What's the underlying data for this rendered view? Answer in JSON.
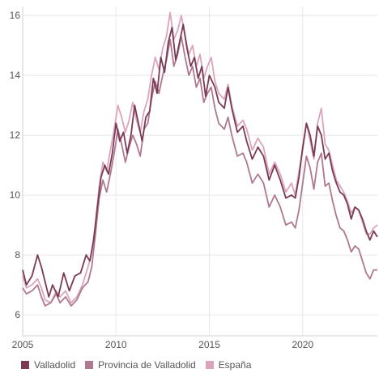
{
  "chart_data": {
    "type": "line",
    "title": "",
    "xlabel": "",
    "ylabel": "",
    "xlim": [
      2005,
      2024.0
    ],
    "ylim": [
      5.3,
      16.3
    ],
    "x_ticks": [
      2005,
      2010,
      2015,
      2020
    ],
    "y_ticks": [
      6,
      8,
      10,
      12,
      14,
      16
    ],
    "grid": true,
    "legend_position": "bottom-left",
    "series": [
      {
        "name": "Valladolid",
        "color": "#7a3a55",
        "points": [
          [
            2005.0,
            7.5
          ],
          [
            2005.2,
            7.0
          ],
          [
            2005.5,
            7.3
          ],
          [
            2005.8,
            8.0
          ],
          [
            2006.0,
            7.6
          ],
          [
            2006.2,
            7.1
          ],
          [
            2006.4,
            6.6
          ],
          [
            2006.6,
            7.0
          ],
          [
            2006.9,
            6.6
          ],
          [
            2007.2,
            7.4
          ],
          [
            2007.5,
            6.8
          ],
          [
            2007.8,
            7.3
          ],
          [
            2008.1,
            7.4
          ],
          [
            2008.4,
            8.0
          ],
          [
            2008.6,
            7.8
          ],
          [
            2008.8,
            8.5
          ],
          [
            2009.0,
            9.6
          ],
          [
            2009.2,
            10.6
          ],
          [
            2009.4,
            11.0
          ],
          [
            2009.6,
            10.7
          ],
          [
            2009.8,
            11.4
          ],
          [
            2010.0,
            12.4
          ],
          [
            2010.2,
            11.8
          ],
          [
            2010.4,
            12.1
          ],
          [
            2010.6,
            11.4
          ],
          [
            2010.8,
            12.0
          ],
          [
            2011.0,
            13.0
          ],
          [
            2011.2,
            12.4
          ],
          [
            2011.4,
            11.8
          ],
          [
            2011.6,
            12.6
          ],
          [
            2011.8,
            12.8
          ],
          [
            2012.0,
            13.9
          ],
          [
            2012.2,
            13.4
          ],
          [
            2012.4,
            14.6
          ],
          [
            2012.6,
            14.1
          ],
          [
            2012.8,
            15.1
          ],
          [
            2013.0,
            15.6
          ],
          [
            2013.2,
            14.5
          ],
          [
            2013.4,
            15.1
          ],
          [
            2013.6,
            15.7
          ],
          [
            2013.8,
            14.9
          ],
          [
            2014.0,
            14.3
          ],
          [
            2014.2,
            14.6
          ],
          [
            2014.4,
            13.9
          ],
          [
            2014.6,
            14.3
          ],
          [
            2014.8,
            13.3
          ],
          [
            2015.0,
            14.0
          ],
          [
            2015.3,
            13.6
          ],
          [
            2015.5,
            13.1
          ],
          [
            2015.8,
            12.9
          ],
          [
            2016.0,
            13.6
          ],
          [
            2016.2,
            12.9
          ],
          [
            2016.5,
            12.1
          ],
          [
            2016.8,
            12.3
          ],
          [
            2017.0,
            11.8
          ],
          [
            2017.3,
            11.2
          ],
          [
            2017.6,
            11.6
          ],
          [
            2017.9,
            11.3
          ],
          [
            2018.2,
            10.5
          ],
          [
            2018.5,
            11.0
          ],
          [
            2018.8,
            10.5
          ],
          [
            2019.1,
            9.9
          ],
          [
            2019.4,
            10.0
          ],
          [
            2019.6,
            9.9
          ],
          [
            2019.8,
            10.6
          ],
          [
            2020.0,
            11.6
          ],
          [
            2020.2,
            12.4
          ],
          [
            2020.4,
            12.0
          ],
          [
            2020.6,
            11.3
          ],
          [
            2020.8,
            12.3
          ],
          [
            2021.0,
            12.0
          ],
          [
            2021.2,
            11.2
          ],
          [
            2021.4,
            11.4
          ],
          [
            2021.6,
            10.8
          ],
          [
            2021.8,
            10.4
          ],
          [
            2022.0,
            10.1
          ],
          [
            2022.2,
            10.0
          ],
          [
            2022.4,
            9.7
          ],
          [
            2022.6,
            9.2
          ],
          [
            2022.8,
            9.6
          ],
          [
            2023.0,
            9.5
          ],
          [
            2023.2,
            9.2
          ],
          [
            2023.4,
            8.8
          ],
          [
            2023.6,
            8.5
          ],
          [
            2023.8,
            8.8
          ],
          [
            2024.0,
            8.6
          ]
        ]
      },
      {
        "name": "Provincia de Valladolid",
        "color": "#b07890",
        "points": [
          [
            2005.0,
            6.9
          ],
          [
            2005.2,
            6.7
          ],
          [
            2005.5,
            6.8
          ],
          [
            2005.8,
            7.0
          ],
          [
            2006.0,
            6.6
          ],
          [
            2006.2,
            6.3
          ],
          [
            2006.5,
            6.4
          ],
          [
            2006.8,
            6.7
          ],
          [
            2007.0,
            6.4
          ],
          [
            2007.3,
            6.6
          ],
          [
            2007.6,
            6.3
          ],
          [
            2007.9,
            6.5
          ],
          [
            2008.2,
            6.9
          ],
          [
            2008.5,
            7.1
          ],
          [
            2008.7,
            7.6
          ],
          [
            2008.9,
            8.7
          ],
          [
            2009.1,
            9.9
          ],
          [
            2009.3,
            10.5
          ],
          [
            2009.5,
            10.1
          ],
          [
            2009.7,
            10.7
          ],
          [
            2009.9,
            11.4
          ],
          [
            2010.1,
            12.2
          ],
          [
            2010.3,
            11.7
          ],
          [
            2010.5,
            11.1
          ],
          [
            2010.7,
            11.6
          ],
          [
            2010.9,
            12.0
          ],
          [
            2011.1,
            11.7
          ],
          [
            2011.3,
            11.3
          ],
          [
            2011.5,
            12.2
          ],
          [
            2011.7,
            12.4
          ],
          [
            2011.9,
            13.2
          ],
          [
            2012.1,
            13.8
          ],
          [
            2012.3,
            13.4
          ],
          [
            2012.5,
            14.0
          ],
          [
            2012.7,
            14.5
          ],
          [
            2012.9,
            15.2
          ],
          [
            2013.1,
            14.3
          ],
          [
            2013.3,
            14.7
          ],
          [
            2013.5,
            15.3
          ],
          [
            2013.7,
            14.6
          ],
          [
            2013.9,
            14.0
          ],
          [
            2014.1,
            14.3
          ],
          [
            2014.3,
            13.6
          ],
          [
            2014.5,
            13.9
          ],
          [
            2014.7,
            13.1
          ],
          [
            2014.9,
            13.4
          ],
          [
            2015.1,
            13.6
          ],
          [
            2015.3,
            12.9
          ],
          [
            2015.5,
            12.4
          ],
          [
            2015.8,
            12.2
          ],
          [
            2016.0,
            12.6
          ],
          [
            2016.2,
            12.0
          ],
          [
            2016.5,
            11.3
          ],
          [
            2016.8,
            11.4
          ],
          [
            2017.0,
            11.1
          ],
          [
            2017.3,
            10.4
          ],
          [
            2017.6,
            10.7
          ],
          [
            2017.9,
            10.4
          ],
          [
            2018.2,
            9.6
          ],
          [
            2018.5,
            10.0
          ],
          [
            2018.8,
            9.6
          ],
          [
            2019.1,
            9.0
          ],
          [
            2019.4,
            9.1
          ],
          [
            2019.6,
            8.9
          ],
          [
            2019.8,
            9.5
          ],
          [
            2020.0,
            10.4
          ],
          [
            2020.2,
            11.3
          ],
          [
            2020.4,
            10.9
          ],
          [
            2020.6,
            10.2
          ],
          [
            2020.8,
            11.1
          ],
          [
            2021.0,
            11.4
          ],
          [
            2021.2,
            10.3
          ],
          [
            2021.4,
            10.4
          ],
          [
            2021.6,
            9.8
          ],
          [
            2021.8,
            9.3
          ],
          [
            2022.0,
            8.9
          ],
          [
            2022.2,
            8.8
          ],
          [
            2022.4,
            8.5
          ],
          [
            2022.6,
            8.1
          ],
          [
            2022.8,
            8.3
          ],
          [
            2023.0,
            8.2
          ],
          [
            2023.2,
            7.8
          ],
          [
            2023.4,
            7.4
          ],
          [
            2023.6,
            7.2
          ],
          [
            2023.8,
            7.5
          ],
          [
            2024.0,
            7.5
          ]
        ]
      },
      {
        "name": "España",
        "color": "#dca4bc",
        "points": [
          [
            2005.0,
            7.3
          ],
          [
            2005.2,
            6.9
          ],
          [
            2005.5,
            7.0
          ],
          [
            2005.8,
            7.2
          ],
          [
            2006.0,
            6.9
          ],
          [
            2006.2,
            6.5
          ],
          [
            2006.5,
            6.4
          ],
          [
            2006.8,
            6.8
          ],
          [
            2007.0,
            6.6
          ],
          [
            2007.3,
            6.8
          ],
          [
            2007.6,
            6.4
          ],
          [
            2007.9,
            6.6
          ],
          [
            2008.2,
            7.0
          ],
          [
            2008.5,
            7.6
          ],
          [
            2008.7,
            8.1
          ],
          [
            2008.9,
            9.0
          ],
          [
            2009.1,
            10.3
          ],
          [
            2009.3,
            11.1
          ],
          [
            2009.5,
            10.8
          ],
          [
            2009.7,
            11.5
          ],
          [
            2009.9,
            12.2
          ],
          [
            2010.1,
            13.0
          ],
          [
            2010.3,
            12.6
          ],
          [
            2010.5,
            12.1
          ],
          [
            2010.7,
            12.5
          ],
          [
            2010.9,
            13.1
          ],
          [
            2011.1,
            12.5
          ],
          [
            2011.3,
            12.1
          ],
          [
            2011.5,
            12.8
          ],
          [
            2011.7,
            13.2
          ],
          [
            2011.9,
            14.0
          ],
          [
            2012.1,
            14.6
          ],
          [
            2012.3,
            14.2
          ],
          [
            2012.5,
            14.9
          ],
          [
            2012.7,
            15.3
          ],
          [
            2012.9,
            16.1
          ],
          [
            2013.1,
            15.2
          ],
          [
            2013.3,
            15.5
          ],
          [
            2013.5,
            16.0
          ],
          [
            2013.7,
            15.3
          ],
          [
            2013.9,
            14.7
          ],
          [
            2014.1,
            15.0
          ],
          [
            2014.3,
            14.3
          ],
          [
            2014.5,
            14.7
          ],
          [
            2014.7,
            13.9
          ],
          [
            2014.9,
            14.3
          ],
          [
            2015.1,
            14.6
          ],
          [
            2015.3,
            13.8
          ],
          [
            2015.5,
            13.4
          ],
          [
            2015.8,
            13.2
          ],
          [
            2016.0,
            13.7
          ],
          [
            2016.2,
            13.0
          ],
          [
            2016.5,
            12.3
          ],
          [
            2016.8,
            12.5
          ],
          [
            2017.0,
            12.2
          ],
          [
            2017.3,
            11.5
          ],
          [
            2017.6,
            11.9
          ],
          [
            2017.9,
            11.6
          ],
          [
            2018.2,
            10.7
          ],
          [
            2018.5,
            11.1
          ],
          [
            2018.8,
            10.7
          ],
          [
            2019.1,
            10.1
          ],
          [
            2019.4,
            10.4
          ],
          [
            2019.6,
            10.0
          ],
          [
            2019.8,
            10.8
          ],
          [
            2020.0,
            11.5
          ],
          [
            2020.2,
            12.4
          ],
          [
            2020.4,
            11.8
          ],
          [
            2020.6,
            11.2
          ],
          [
            2020.8,
            12.4
          ],
          [
            2021.0,
            12.9
          ],
          [
            2021.2,
            11.7
          ],
          [
            2021.4,
            11.5
          ],
          [
            2021.6,
            11.0
          ],
          [
            2021.8,
            10.5
          ],
          [
            2022.0,
            10.3
          ],
          [
            2022.2,
            10.1
          ],
          [
            2022.4,
            9.8
          ],
          [
            2022.6,
            9.4
          ],
          [
            2022.8,
            9.6
          ],
          [
            2023.0,
            9.5
          ],
          [
            2023.2,
            9.1
          ],
          [
            2023.4,
            8.7
          ],
          [
            2023.6,
            8.7
          ],
          [
            2023.8,
            8.9
          ],
          [
            2024.0,
            9.0
          ]
        ]
      }
    ]
  }
}
